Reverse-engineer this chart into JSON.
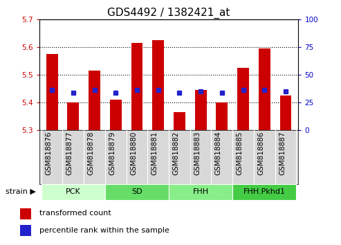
{
  "title": "GDS4492 / 1382421_at",
  "samples": [
    "GSM818876",
    "GSM818877",
    "GSM818878",
    "GSM818879",
    "GSM818880",
    "GSM818881",
    "GSM818882",
    "GSM818883",
    "GSM818884",
    "GSM818885",
    "GSM818886",
    "GSM818887"
  ],
  "bar_values": [
    5.575,
    5.4,
    5.515,
    5.41,
    5.615,
    5.625,
    5.365,
    5.445,
    5.4,
    5.525,
    5.595,
    5.425
  ],
  "percentile_values": [
    5.445,
    5.435,
    5.445,
    5.435,
    5.445,
    5.445,
    5.435,
    5.44,
    5.435,
    5.445,
    5.445,
    5.44
  ],
  "ymin": 5.3,
  "ymax": 5.7,
  "y2min": 0,
  "y2max": 100,
  "yticks": [
    5.3,
    5.4,
    5.5,
    5.6,
    5.7
  ],
  "y2ticks": [
    0,
    25,
    50,
    75,
    100
  ],
  "grid_yticks": [
    5.4,
    5.5,
    5.6
  ],
  "bar_color": "#cc0000",
  "percentile_color": "#2222cc",
  "groups": [
    {
      "label": "PCK",
      "start": 0,
      "end": 3,
      "color": "#ccffcc"
    },
    {
      "label": "SD",
      "start": 3,
      "end": 6,
      "color": "#66dd66"
    },
    {
      "label": "FHH",
      "start": 6,
      "end": 9,
      "color": "#88ee88"
    },
    {
      "label": "FHH.Pkhd1",
      "start": 9,
      "end": 12,
      "color": "#44cc44"
    }
  ],
  "group_row_label": "strain",
  "legend_bar_label": "transformed count",
  "legend_pct_label": "percentile rank within the sample",
  "left_tick_color": "#cc0000",
  "right_tick_color": "#0000cc",
  "title_fontsize": 11,
  "tick_fontsize": 7.5,
  "group_fontsize": 8,
  "legend_fontsize": 8,
  "plot_bg": "#ffffff",
  "xtick_bg": "#d8d8d8"
}
